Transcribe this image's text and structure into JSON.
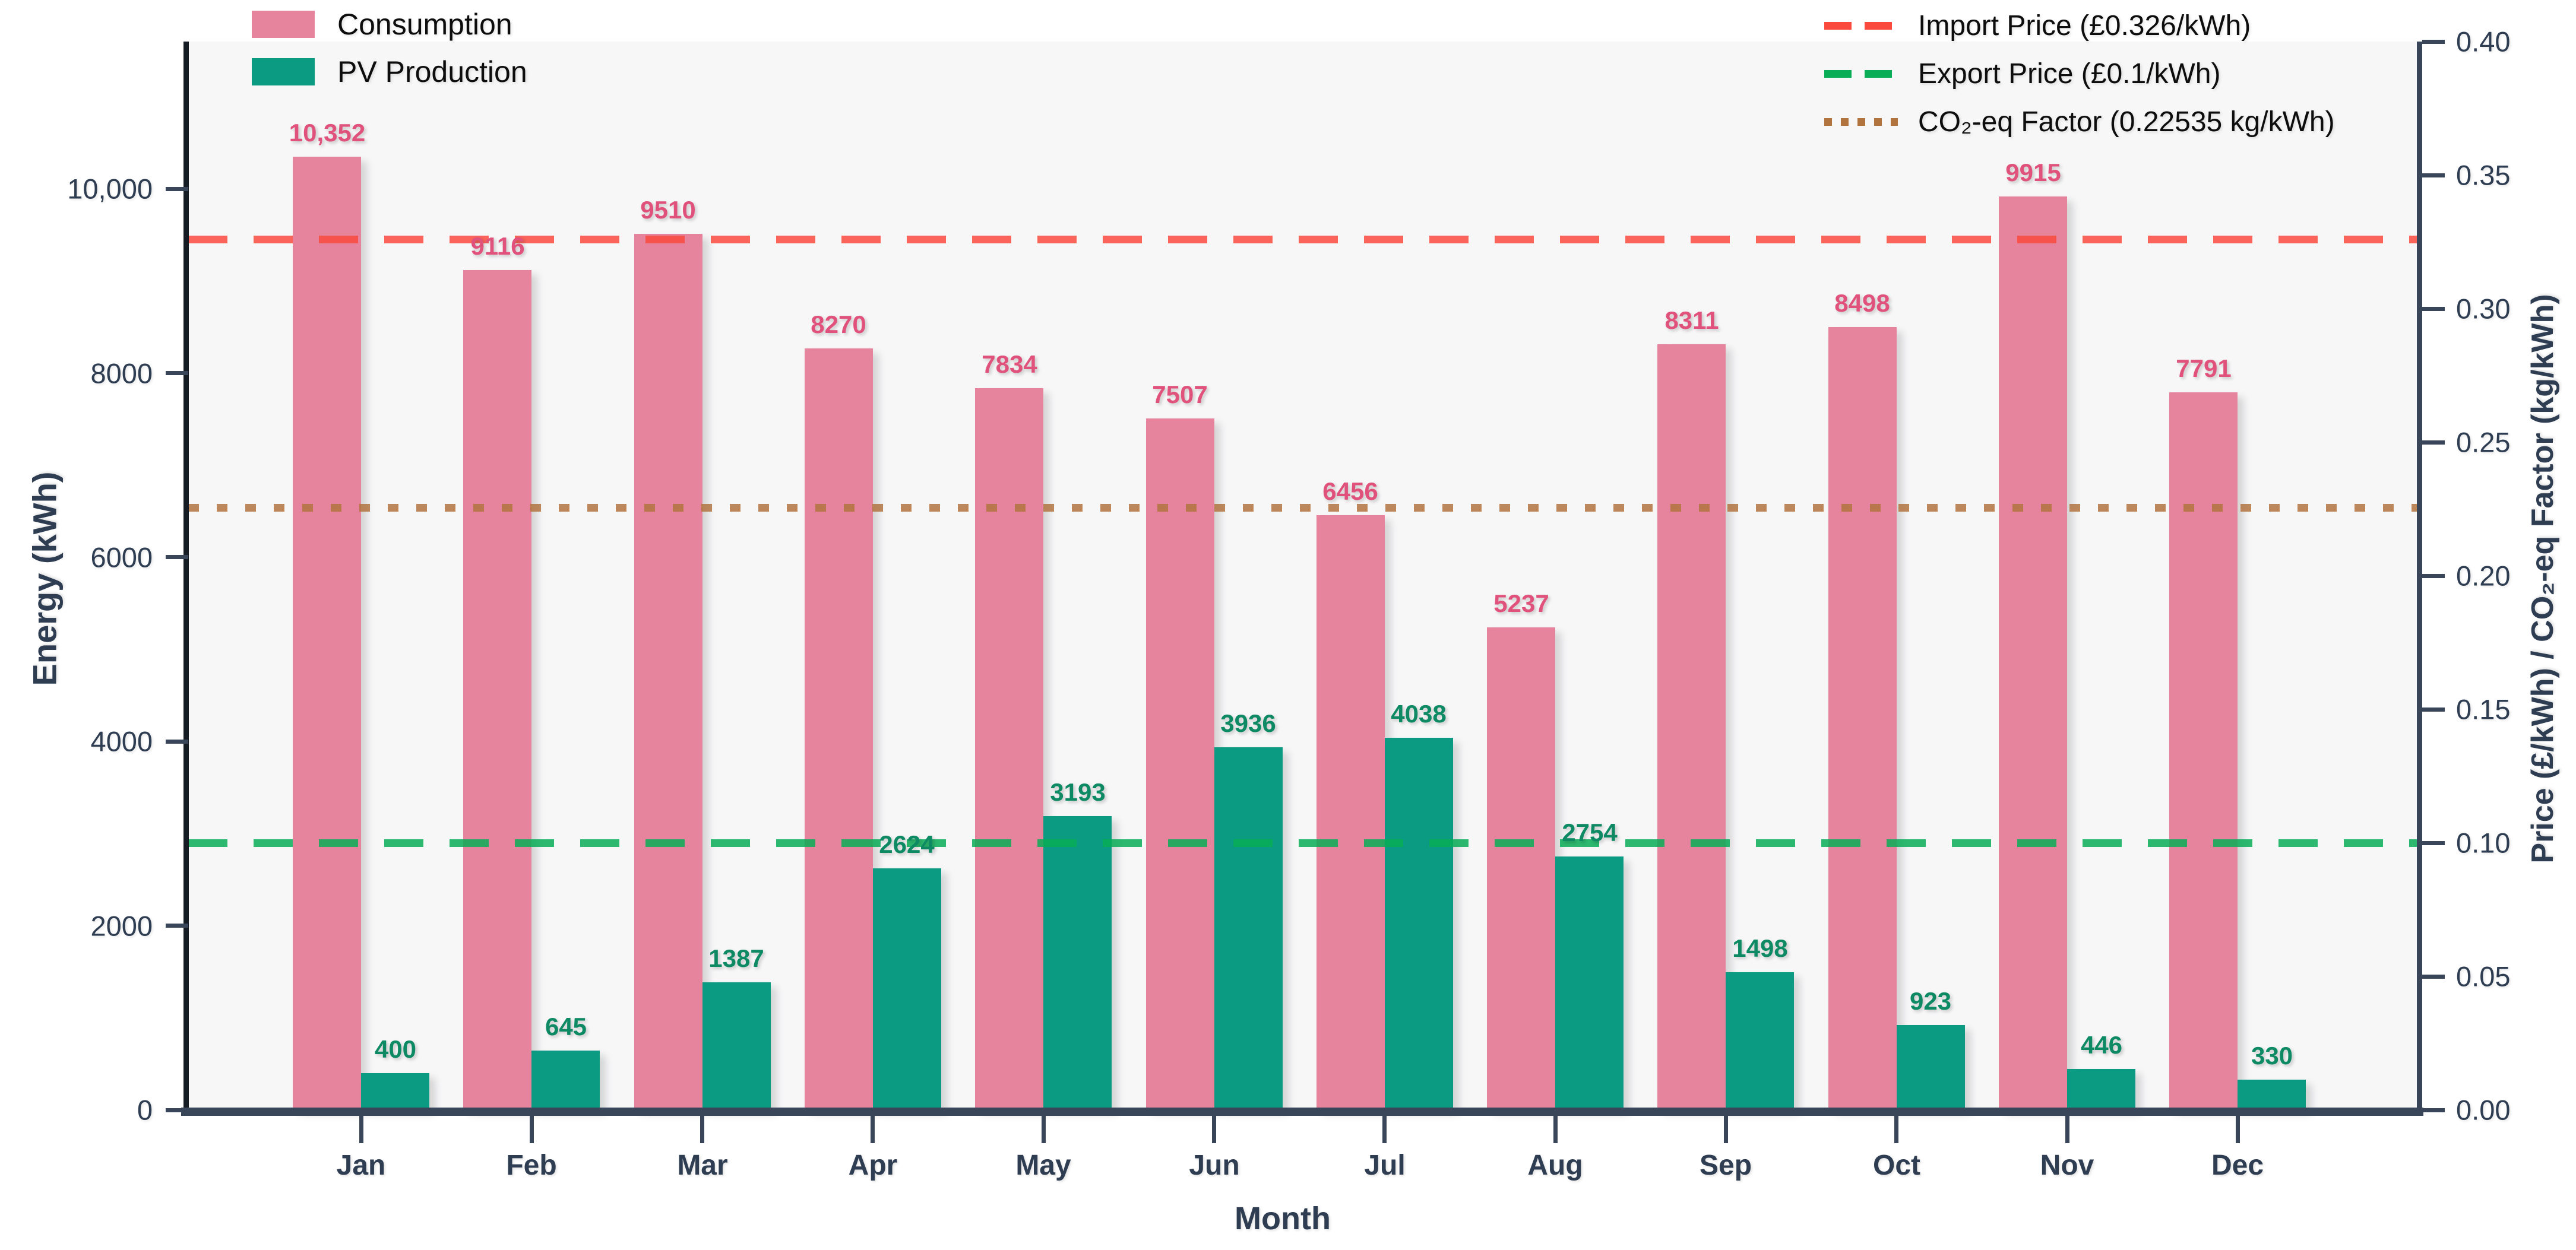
{
  "chart_data": {
    "type": "bar",
    "categories": [
      "Jan",
      "Feb",
      "Mar",
      "Apr",
      "May",
      "Jun",
      "Jul",
      "Aug",
      "Sep",
      "Oct",
      "Nov",
      "Dec"
    ],
    "series": [
      {
        "name": "Consumption",
        "color": "#e6849d",
        "label_color": "#e0527b",
        "values": [
          10352,
          9116,
          9510,
          8270,
          7834,
          7507,
          6456,
          5237,
          8311,
          8498,
          9915,
          7791
        ],
        "labels": [
          "10,352",
          "9116",
          "9510",
          "8270",
          "7834",
          "7507",
          "6456",
          "5237",
          "8311",
          "8498",
          "9915",
          "7791"
        ]
      },
      {
        "name": "PV Production",
        "color": "#0a9b82",
        "label_color": "#0d8a63",
        "values": [
          400,
          645,
          1387,
          2624,
          3193,
          3936,
          4038,
          2754,
          1498,
          923,
          446,
          330
        ],
        "labels": [
          "400",
          "645",
          "1387",
          "2624",
          "3193",
          "3936",
          "4038",
          "2754",
          "1498",
          "923",
          "446",
          "330"
        ]
      }
    ],
    "lines": [
      {
        "name": "Import Price (£0.326/kWh)",
        "value": 0.326,
        "color": "#fa4a3e",
        "style": "dashed"
      },
      {
        "name": "Export Price (£0.1/kWh)",
        "value": 0.1,
        "color": "#08ad56",
        "style": "dashed"
      },
      {
        "name": "CO₂-eq Factor (0.22535 kg/kWh)",
        "value": 0.22535,
        "color": "#b1743f",
        "style": "dotted"
      }
    ],
    "xlabel": "Month",
    "ylabel_left": "Energy (kWh)",
    "ylabel_right": "Price (£/kWh) / CO₂-eq Factor (kg/kWh)",
    "ylim_left": [
      0,
      11600
    ],
    "ylim_right": [
      0,
      0.4
    ],
    "yticks_left": {
      "values": [
        0,
        2000,
        4000,
        6000,
        8000,
        10000
      ],
      "labels": [
        "0",
        "2000",
        "4000",
        "6000",
        "8000",
        "10,000"
      ]
    },
    "yticks_right": {
      "values": [
        0,
        0.05,
        0.1,
        0.15,
        0.2,
        0.25,
        0.3,
        0.35,
        0.4
      ],
      "labels": [
        "0.00",
        "0.05",
        "0.10",
        "0.15",
        "0.20",
        "0.25",
        "0.30",
        "0.35",
        "0.40"
      ]
    },
    "grid": false,
    "plot_background": "#f7f7f8",
    "legend_positions": {
      "series": "upper left",
      "lines": "upper right"
    }
  }
}
